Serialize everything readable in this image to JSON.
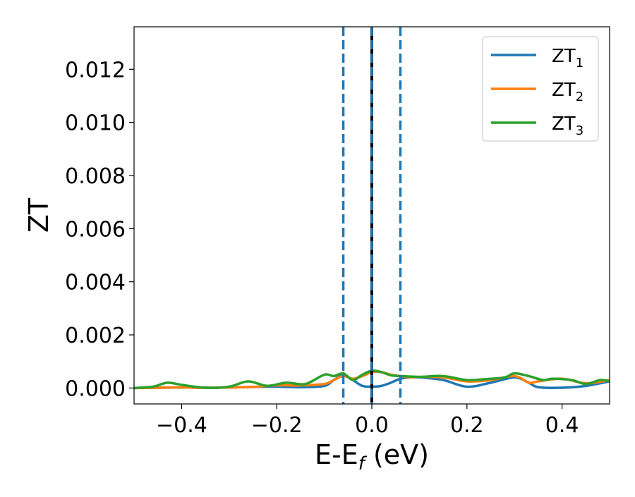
{
  "chart_data": {
    "type": "line",
    "title": "",
    "xlabel_main": "E-E",
    "xlabel_sub": "f",
    "xlabel_tail": " (eV)",
    "ylabel": "ZT",
    "xlim": [
      -0.5,
      0.5
    ],
    "ylim": [
      -0.0006,
      0.0136
    ],
    "xticks": [
      -0.4,
      -0.2,
      0.0,
      0.2,
      0.4
    ],
    "xtick_labels": [
      "−0.4",
      "−0.2",
      "0.0",
      "0.2",
      "0.4"
    ],
    "yticks": [
      0.0,
      0.002,
      0.004,
      0.006,
      0.008,
      0.01,
      0.012
    ],
    "ytick_labels": [
      "0.000",
      "0.002",
      "0.004",
      "0.006",
      "0.008",
      "0.010",
      "0.012"
    ],
    "grid": false,
    "legend_position": "top-right",
    "vertical_lines": [
      {
        "x": -0.06,
        "style": "dashed",
        "color": "#1f77b4"
      },
      {
        "x": 0.0,
        "style": "solid",
        "color": "#000000"
      },
      {
        "x": 0.0,
        "style": "dashed",
        "color": "#1f77b4"
      },
      {
        "x": 0.06,
        "style": "dashed",
        "color": "#1f77b4"
      }
    ],
    "series": [
      {
        "name_main": "ZT",
        "name_sub": "1",
        "color": "#1f77b4",
        "x": [
          -0.5,
          -0.45,
          -0.4,
          -0.35,
          -0.3,
          -0.25,
          -0.2,
          -0.15,
          -0.1,
          -0.08,
          -0.06,
          -0.04,
          -0.02,
          0.0,
          0.02,
          0.04,
          0.06,
          0.08,
          0.1,
          0.15,
          0.2,
          0.25,
          0.3,
          0.33,
          0.35,
          0.4,
          0.45,
          0.5
        ],
        "y": [
          0.0,
          1e-05,
          2e-05,
          1e-05,
          2e-05,
          4e-05,
          5e-05,
          3e-05,
          8e-05,
          0.0003,
          0.00048,
          0.0003,
          8e-05,
          5e-05,
          8e-05,
          0.0002,
          0.00035,
          0.0004,
          0.0004,
          0.0003,
          5e-05,
          0.0002,
          0.0004,
          0.0002,
          3e-05,
          1e-05,
          8e-05,
          0.00025
        ]
      },
      {
        "name_main": "ZT",
        "name_sub": "2",
        "color": "#ff7f0e",
        "x": [
          -0.5,
          -0.45,
          -0.4,
          -0.35,
          -0.3,
          -0.25,
          -0.2,
          -0.15,
          -0.1,
          -0.08,
          -0.06,
          -0.04,
          -0.02,
          0.0,
          0.02,
          0.04,
          0.06,
          0.08,
          0.1,
          0.15,
          0.2,
          0.25,
          0.3,
          0.33,
          0.35,
          0.4,
          0.45,
          0.5
        ],
        "y": [
          0.0,
          1e-05,
          2e-05,
          1e-05,
          2e-05,
          4e-05,
          0.0001,
          0.0001,
          0.00015,
          0.0003,
          0.00045,
          0.00035,
          0.00045,
          0.0006,
          0.0006,
          0.0005,
          0.00045,
          0.0004,
          0.00042,
          0.0004,
          0.00025,
          0.0003,
          0.00045,
          0.0002,
          0.00025,
          0.00035,
          0.00018,
          0.0003
        ]
      },
      {
        "name_main": "ZT",
        "name_sub": "3",
        "color": "#2ca02c",
        "x": [
          -0.5,
          -0.46,
          -0.43,
          -0.4,
          -0.35,
          -0.3,
          -0.26,
          -0.22,
          -0.18,
          -0.14,
          -0.1,
          -0.08,
          -0.06,
          -0.04,
          -0.02,
          0.0,
          0.02,
          0.04,
          0.06,
          0.1,
          0.15,
          0.2,
          0.25,
          0.28,
          0.3,
          0.33,
          0.36,
          0.38,
          0.42,
          0.45,
          0.48,
          0.5
        ],
        "y": [
          0.0,
          5e-05,
          0.0002,
          0.00012,
          1e-05,
          5e-05,
          0.00025,
          8e-05,
          0.0002,
          0.00015,
          0.0005,
          0.00045,
          0.00055,
          0.0003,
          0.0005,
          0.00065,
          0.0006,
          0.00048,
          0.00045,
          0.00042,
          0.00045,
          0.0003,
          0.00035,
          0.0004,
          0.00055,
          0.00045,
          0.0003,
          0.00035,
          0.0003,
          0.00015,
          0.0003,
          0.00025
        ]
      }
    ]
  }
}
